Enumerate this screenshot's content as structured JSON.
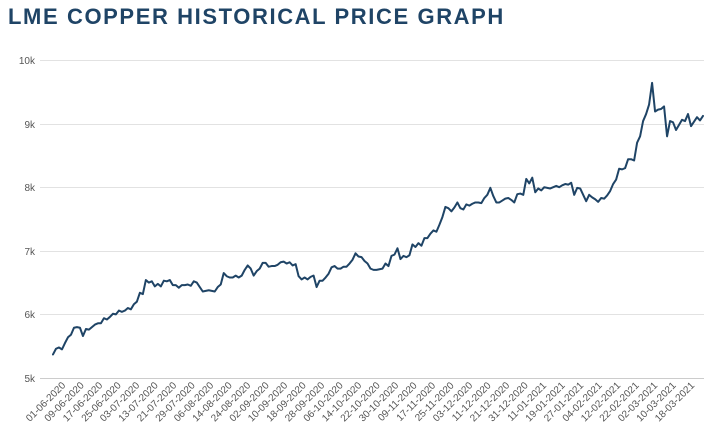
{
  "chart_data": {
    "type": "line",
    "title": "LME COPPER HISTORICAL PRICE GRAPH",
    "xlabel": "",
    "ylabel": "",
    "ylim": [
      5000,
      10000
    ],
    "ytick_values": [
      5000,
      6000,
      7000,
      8000,
      9000,
      10000
    ],
    "ytick_labels": [
      "5k",
      "6k",
      "7k",
      "8k",
      "9k",
      "10k"
    ],
    "x_labels": [
      "01-06-2020",
      "09-06-2020",
      "17-06-2020",
      "25-06-2020",
      "03-07-2020",
      "13-07-2020",
      "21-07-2020",
      "29-07-2020",
      "06-08-2020",
      "14-08-2020",
      "24-08-2020",
      "02-09-2020",
      "10-09-2020",
      "18-09-2020",
      "28-09-2020",
      "06-10-2020",
      "14-10-2020",
      "22-10-2020",
      "30-10-2020",
      "09-11-2020",
      "17-11-2020",
      "25-11-2020",
      "03-12-2020",
      "11-12-2020",
      "21-12-2020",
      "31-12-2020",
      "11-01-2021",
      "19-01-2021",
      "27-01-2021",
      "04-02-2021",
      "12-02-2021",
      "22-02-2021",
      "02-03-2021",
      "10-03-2021",
      "18-03-2021"
    ],
    "series": [
      {
        "name": "LME Copper",
        "color": "#1f4466",
        "values": [
          5370,
          5460,
          5480,
          5450,
          5550,
          5640,
          5680,
          5790,
          5800,
          5790,
          5660,
          5770,
          5760,
          5800,
          5840,
          5860,
          5860,
          5940,
          5920,
          5960,
          6010,
          6000,
          6060,
          6040,
          6060,
          6100,
          6080,
          6160,
          6200,
          6340,
          6320,
          6540,
          6500,
          6520,
          6440,
          6480,
          6440,
          6530,
          6520,
          6540,
          6460,
          6460,
          6420,
          6460,
          6460,
          6470,
          6450,
          6520,
          6500,
          6430,
          6360,
          6370,
          6380,
          6370,
          6360,
          6430,
          6470,
          6650,
          6600,
          6580,
          6580,
          6610,
          6580,
          6610,
          6700,
          6770,
          6720,
          6610,
          6680,
          6720,
          6810,
          6810,
          6750,
          6760,
          6760,
          6780,
          6820,
          6830,
          6800,
          6820,
          6770,
          6790,
          6600,
          6550,
          6580,
          6550,
          6590,
          6610,
          6430,
          6530,
          6530,
          6580,
          6640,
          6740,
          6760,
          6720,
          6720,
          6750,
          6750,
          6800,
          6860,
          6960,
          6910,
          6900,
          6840,
          6800,
          6720,
          6700,
          6700,
          6710,
          6720,
          6800,
          6760,
          6920,
          6940,
          7040,
          6870,
          6920,
          6900,
          6930,
          7100,
          7060,
          7120,
          7080,
          7200,
          7200,
          7270,
          7320,
          7300,
          7410,
          7530,
          7690,
          7670,
          7620,
          7680,
          7760,
          7670,
          7650,
          7730,
          7710,
          7740,
          7760,
          7760,
          7750,
          7830,
          7880,
          7990,
          7860,
          7760,
          7760,
          7790,
          7820,
          7830,
          7800,
          7760,
          7890,
          7900,
          7880,
          8130,
          8060,
          8150,
          7920,
          7980,
          7950,
          8000,
          7990,
          7980,
          8000,
          8020,
          8000,
          8030,
          8050,
          8040,
          8070,
          7880,
          7990,
          7980,
          7880,
          7780,
          7880,
          7840,
          7810,
          7770,
          7830,
          7820,
          7870,
          7940,
          8050,
          8120,
          8290,
          8280,
          8300,
          8440,
          8440,
          8420,
          8700,
          8800,
          9040,
          9150,
          9300,
          9640,
          9190,
          9220,
          9230,
          9270,
          8800,
          9040,
          9020,
          8900,
          8980,
          9060,
          9040,
          9150,
          8960,
          9030,
          9100,
          9050,
          9120
        ]
      }
    ]
  }
}
